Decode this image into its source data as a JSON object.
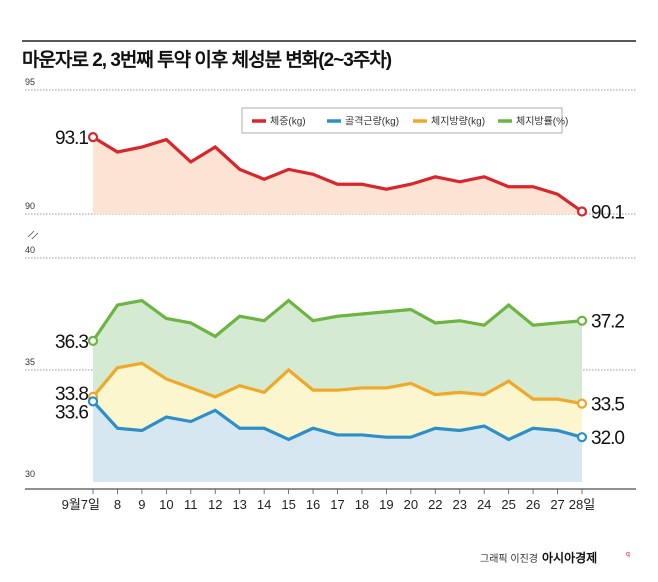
{
  "chart_data": [
    {
      "type": "area",
      "title": "마운자로 2, 3번째 투약 이후 체성분 변화(2~3주차)",
      "panel": "top",
      "ylim": [
        90,
        95
      ],
      "yticks": [
        "95",
        "90"
      ],
      "categories": [
        "9월7일",
        "8",
        "9",
        "10",
        "11",
        "12",
        "13",
        "14",
        "15",
        "16",
        "17",
        "18",
        "19",
        "20",
        "22",
        "23",
        "24",
        "25",
        "26",
        "27",
        "28일"
      ],
      "series": [
        {
          "name": "체중(kg)",
          "color": "#d9262c",
          "fill": "#fde3d3",
          "values": [
            93.1,
            92.5,
            92.7,
            93.0,
            92.1,
            92.7,
            91.8,
            91.4,
            91.8,
            91.6,
            91.2,
            91.2,
            91.0,
            91.2,
            91.5,
            91.3,
            91.5,
            91.1,
            91.1,
            90.8,
            90.1
          ],
          "start_label": "93.1",
          "end_label": "90.1"
        }
      ]
    },
    {
      "type": "area",
      "panel": "bottom",
      "ylim": [
        30,
        40
      ],
      "yticks": [
        "40",
        "35",
        "30"
      ],
      "series": [
        {
          "name": "체지방률(%)",
          "color": "#6bb540",
          "fill": "#d5ead3",
          "values": [
            36.3,
            37.9,
            38.1,
            37.3,
            37.1,
            36.5,
            37.4,
            37.2,
            38.1,
            37.2,
            37.4,
            37.5,
            37.6,
            37.7,
            37.1,
            37.2,
            37.0,
            37.9,
            37.0,
            37.1,
            37.2
          ],
          "start_label": "36.3",
          "end_label": "37.2"
        },
        {
          "name": "체지방량(kg)",
          "color": "#f0a829",
          "fill": "#fcf6cf",
          "values": [
            33.8,
            35.1,
            35.3,
            34.6,
            34.2,
            33.8,
            34.3,
            34.0,
            35.0,
            34.1,
            34.1,
            34.2,
            34.2,
            34.4,
            33.9,
            34.0,
            33.9,
            34.5,
            33.7,
            33.7,
            33.5
          ],
          "start_label": "33.8",
          "end_label": "33.5"
        },
        {
          "name": "골격근량(kg)",
          "color": "#2d8fc7",
          "fill": "#d6e7f2",
          "values": [
            33.6,
            32.4,
            32.3,
            32.9,
            32.7,
            33.2,
            32.4,
            32.4,
            31.9,
            32.4,
            32.1,
            32.1,
            32.0,
            32.0,
            32.4,
            32.3,
            32.5,
            31.9,
            32.4,
            32.3,
            32.0
          ],
          "start_label": "33.6",
          "end_label": "32.0"
        }
      ]
    }
  ],
  "legend": [
    {
      "label": "체중(kg)",
      "color": "#d9262c"
    },
    {
      "label": "골격근량(kg)",
      "color": "#2d8fc7"
    },
    {
      "label": "체지방량(kg)",
      "color": "#f0a829"
    },
    {
      "label": "체지방률(%)",
      "color": "#6bb540"
    }
  ],
  "credit": {
    "byline": "그래픽 이진경",
    "brand": "아시아경제"
  }
}
